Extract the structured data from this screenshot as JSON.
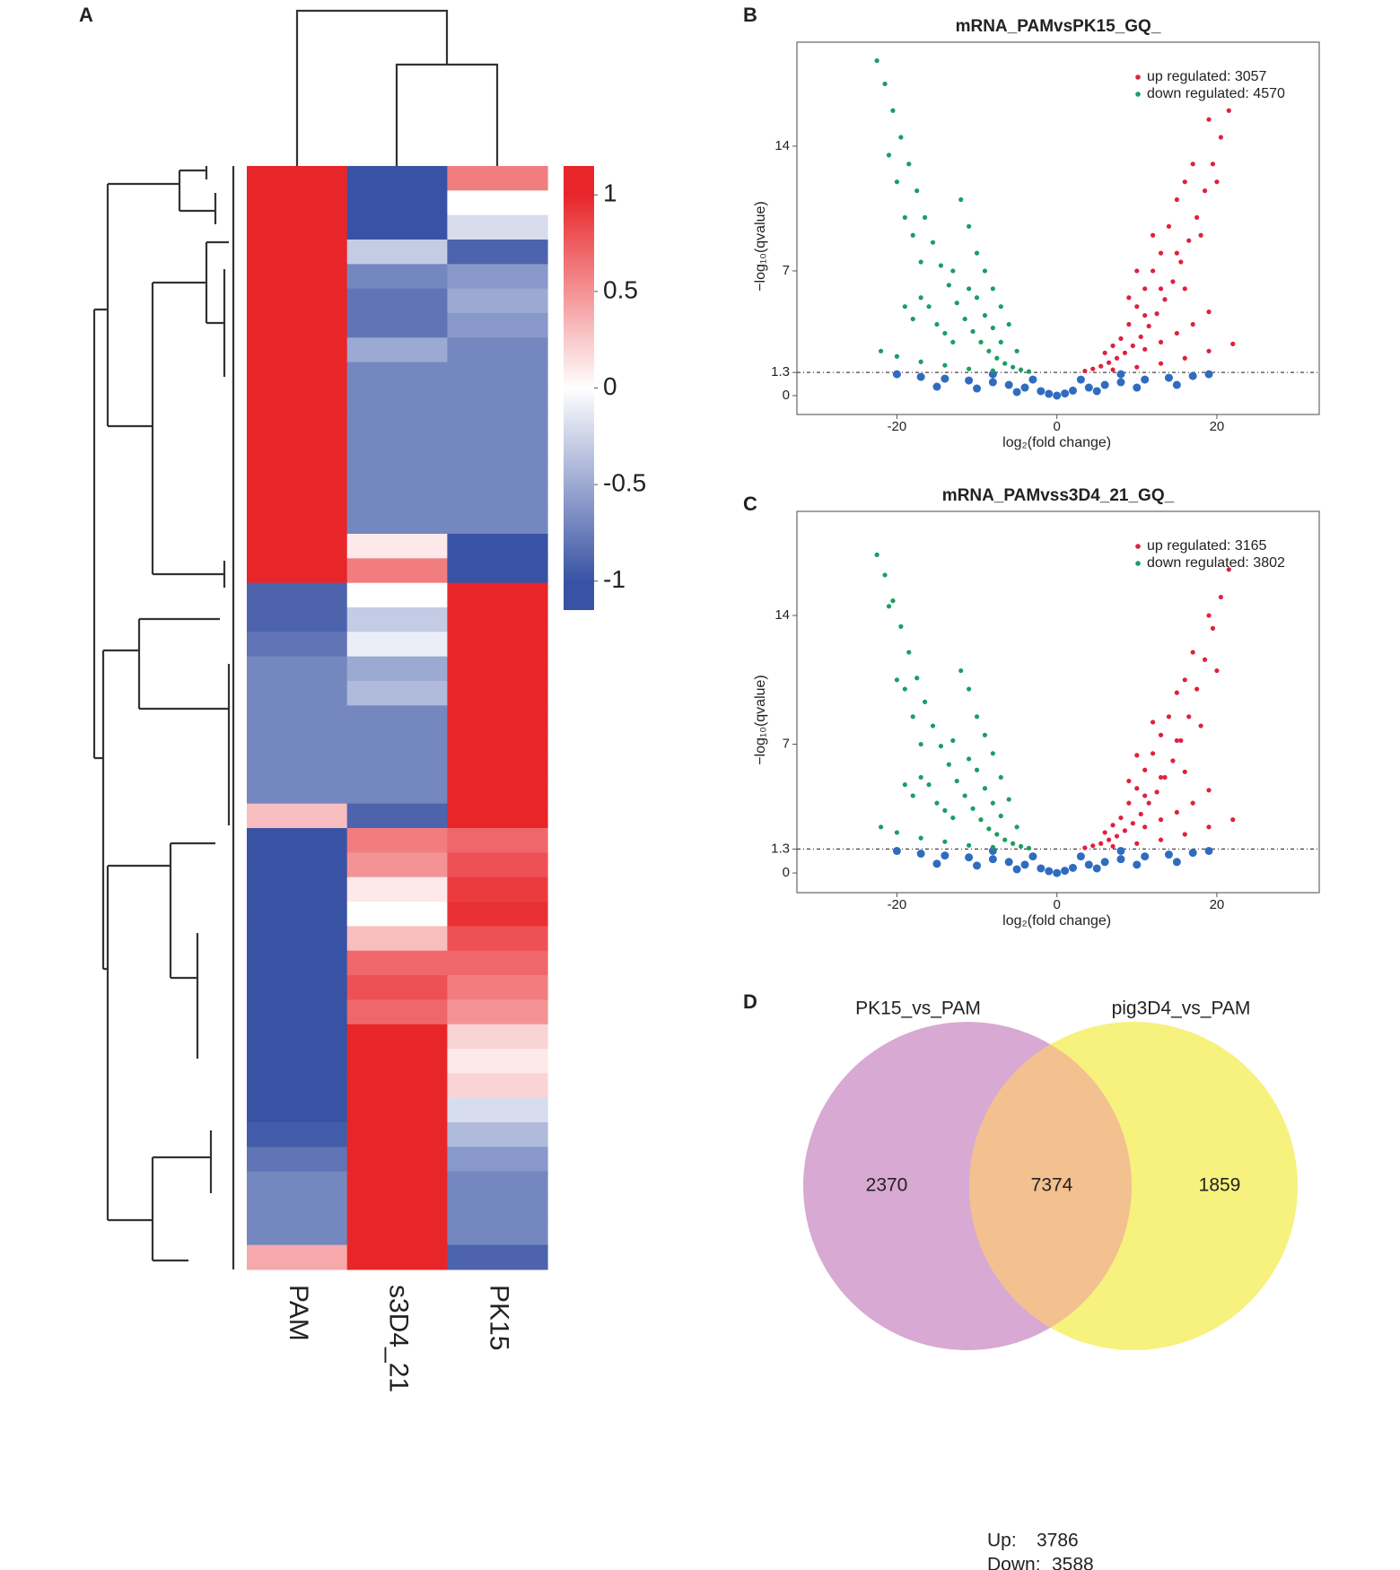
{
  "chart_data": [
    {
      "type": "heatmap",
      "panel": "A",
      "columns": [
        "PAM",
        "s3D4_21",
        "PK15"
      ],
      "rows": [
        [
          1,
          -1,
          0.6
        ],
        [
          1,
          -1,
          0.0
        ],
        [
          1,
          -1,
          -0.2
        ],
        [
          1,
          -0.3,
          -0.9
        ],
        [
          1,
          -0.7,
          -0.6
        ],
        [
          1,
          -0.8,
          -0.5
        ],
        [
          1,
          -0.8,
          -0.6
        ],
        [
          1,
          -0.5,
          -0.7
        ],
        [
          1,
          -0.7,
          -0.7
        ],
        [
          1,
          -0.7,
          -0.7
        ],
        [
          1,
          -0.7,
          -0.7
        ],
        [
          1,
          -0.7,
          -0.7
        ],
        [
          1,
          -0.7,
          -0.7
        ],
        [
          1,
          -0.7,
          -0.7
        ],
        [
          1,
          -0.7,
          -0.7
        ],
        [
          1,
          0.1,
          -1
        ],
        [
          1,
          0.6,
          -1
        ],
        [
          -0.9,
          0,
          1
        ],
        [
          -0.9,
          -0.3,
          1
        ],
        [
          -0.8,
          -0.1,
          1
        ],
        [
          -0.7,
          -0.5,
          1
        ],
        [
          -0.7,
          -0.4,
          1
        ],
        [
          -0.7,
          -0.7,
          1
        ],
        [
          -0.7,
          -0.7,
          1
        ],
        [
          -0.7,
          -0.7,
          1
        ],
        [
          -0.7,
          -0.7,
          1
        ],
        [
          0.3,
          -0.9,
          1
        ],
        [
          -1,
          0.6,
          0.7
        ],
        [
          -1,
          0.5,
          0.8
        ],
        [
          -1,
          0.1,
          0.9
        ],
        [
          -1,
          0.0,
          0.95
        ],
        [
          -1,
          0.3,
          0.8
        ],
        [
          -1,
          0.7,
          0.7
        ],
        [
          -1,
          0.8,
          0.6
        ],
        [
          -1,
          0.7,
          0.5
        ],
        [
          -1,
          1,
          0.2
        ],
        [
          -1,
          1,
          0.1
        ],
        [
          -1,
          1,
          0.2
        ],
        [
          -1,
          1,
          -0.2
        ],
        [
          -0.95,
          1,
          -0.4
        ],
        [
          -0.8,
          1,
          -0.6
        ],
        [
          -0.7,
          1,
          -0.7
        ],
        [
          -0.7,
          1,
          -0.7
        ],
        [
          -0.7,
          1,
          -0.7
        ],
        [
          0.4,
          1,
          -0.9
        ]
      ],
      "zlim": [
        -1.15,
        1.15
      ],
      "zticks": [
        1,
        0.5,
        0,
        -0.5,
        -1
      ],
      "colors": [
        "#3953a4",
        "#ffffff",
        "#e8262a"
      ]
    },
    {
      "type": "scatter",
      "panel": "B",
      "title": "mRNA_PAMvsPK15_GQ_",
      "xlabel": "log₂(fold change)",
      "ylabel": "−log₁₀(qvalue)",
      "xlim": [
        -32.5,
        32.8
      ],
      "ylim": [
        -1.06,
        19.84
      ],
      "xticks": [
        -20,
        0,
        20
      ],
      "yticks": [
        0,
        1.3,
        7,
        14
      ],
      "threshold": 1.3,
      "series": [
        {
          "name": "up regulated: 3057",
          "color": "#e0203e",
          "x": [
            21.5,
            20.5,
            19.5,
            18.5,
            17.5,
            16.5,
            15.5,
            14.5,
            13.5,
            12.5,
            11.5,
            10.5,
            9.5,
            8.5,
            7.5,
            6.5,
            5.5,
            4.5,
            3.5,
            19,
            20,
            17,
            16,
            15,
            14,
            13,
            12,
            11,
            10,
            9,
            8,
            7,
            6,
            15,
            13,
            11,
            12,
            10,
            9,
            18,
            16,
            19,
            17,
            15,
            13,
            11,
            19,
            16,
            13,
            10,
            7,
            22
          ],
          "y": [
            16,
            14.5,
            13,
            11.5,
            10,
            8.7,
            7.5,
            6.4,
            5.4,
            4.6,
            3.9,
            3.3,
            2.8,
            2.4,
            2.1,
            1.85,
            1.65,
            1.5,
            1.38,
            15.5,
            12,
            13,
            12,
            11,
            9.5,
            8,
            7,
            6,
            5,
            4,
            3.2,
            2.8,
            2.4,
            8,
            6,
            4.5,
            9,
            7,
            5.5,
            9,
            6,
            4.7,
            4,
            3.5,
            3,
            2.6,
            2.5,
            2.1,
            1.8,
            1.6,
            1.45,
            2.9
          ]
        },
        {
          "name": "down regulated: 4570",
          "color": "#1a9e62",
          "x": [
            -22.5,
            -21.5,
            -20.5,
            -19.5,
            -18.5,
            -17.5,
            -16.5,
            -15.5,
            -14.5,
            -13.5,
            -12.5,
            -11.5,
            -10.5,
            -9.5,
            -8.5,
            -7.5,
            -6.5,
            -5.5,
            -4.5,
            -3.5,
            -21,
            -20,
            -19,
            -18,
            -17,
            -19,
            -18,
            -17,
            -16,
            -15,
            -14,
            -13,
            -12,
            -11,
            -10,
            -9,
            -8,
            -7,
            -6,
            -11,
            -9,
            -7,
            -5,
            -13,
            -10,
            -8,
            -22,
            -20,
            -17,
            -14,
            -11,
            -8
          ],
          "y": [
            18.8,
            17.5,
            16,
            14.5,
            13,
            11.5,
            10,
            8.6,
            7.3,
            6.2,
            5.2,
            4.3,
            3.6,
            3,
            2.5,
            2.1,
            1.8,
            1.6,
            1.45,
            1.35,
            13.5,
            12,
            10,
            9,
            7.5,
            5,
            4.3,
            5.5,
            5,
            4,
            3.5,
            3,
            11,
            9.5,
            8,
            7,
            6,
            5,
            4,
            6,
            4.5,
            3,
            2.5,
            7,
            5.5,
            3.8,
            2.5,
            2.2,
            1.9,
            1.7,
            1.5,
            1.4
          ]
        },
        {
          "color": "#2f6cc0",
          "x": [
            -20,
            -17,
            -14,
            -11,
            -8,
            -6,
            -4,
            -2,
            -1,
            0,
            1,
            2,
            4,
            6,
            8,
            11,
            14,
            17,
            19,
            -15,
            -10,
            -5,
            5,
            10,
            15,
            -3,
            3,
            -8,
            8
          ],
          "y": [
            1.2,
            1.05,
            0.95,
            0.85,
            0.75,
            0.6,
            0.45,
            0.25,
            0.1,
            0,
            0.12,
            0.28,
            0.45,
            0.6,
            0.75,
            0.9,
            1.0,
            1.1,
            1.2,
            0.5,
            0.4,
            0.2,
            0.25,
            0.45,
            0.6,
            0.9,
            0.9,
            1.2,
            1.2
          ]
        }
      ]
    },
    {
      "type": "scatter",
      "panel": "C",
      "title": "mRNA_PAMvss3D4_21_GQ_",
      "xlabel": "log₂(fold change)",
      "ylabel": "−log₁₀(qvalue)",
      "xlim": [
        -32.5,
        32.8
      ],
      "ylim": [
        -1.07,
        19.66
      ],
      "xticks": [
        -20,
        0,
        20
      ],
      "yticks": [
        0,
        1.3,
        7,
        14
      ],
      "threshold": 1.3,
      "series": [
        {
          "name": "up regulated: 3165",
          "color": "#e0203e",
          "x": [
            21.5,
            20.5,
            19.5,
            18.5,
            17.5,
            16.5,
            15.5,
            14.5,
            13.5,
            12.5,
            11.5,
            10.5,
            9.5,
            8.5,
            7.5,
            6.5,
            5.5,
            4.5,
            3.5,
            19,
            20,
            17,
            16,
            15,
            14,
            13,
            12,
            11,
            10,
            9,
            8,
            7,
            6,
            15,
            13,
            11,
            12,
            10,
            9,
            18,
            16,
            19,
            17,
            15,
            13,
            11,
            19,
            16,
            13,
            10,
            7,
            22
          ],
          "y": [
            16.5,
            15,
            13.3,
            11.6,
            10,
            8.5,
            7.2,
            6.1,
            5.2,
            4.4,
            3.8,
            3.2,
            2.7,
            2.3,
            2,
            1.8,
            1.6,
            1.48,
            1.37,
            14,
            11,
            12,
            10.5,
            9.8,
            8.5,
            7.5,
            6.5,
            5.6,
            4.6,
            3.8,
            3,
            2.6,
            2.2,
            7.2,
            5.2,
            4.2,
            8.2,
            6.4,
            5,
            8,
            5.5,
            4.5,
            3.8,
            3.3,
            2.9,
            2.5,
            2.5,
            2.1,
            1.8,
            1.6,
            1.45,
            2.9
          ]
        },
        {
          "name": "down regulated: 3802",
          "color": "#1a9e62",
          "x": [
            -22.5,
            -21.5,
            -20.5,
            -19.5,
            -18.5,
            -17.5,
            -16.5,
            -15.5,
            -14.5,
            -13.5,
            -12.5,
            -11.5,
            -10.5,
            -9.5,
            -8.5,
            -7.5,
            -6.5,
            -5.5,
            -4.5,
            -3.5,
            -21,
            -20,
            -19,
            -18,
            -17,
            -19,
            -18,
            -17,
            -16,
            -15,
            -14,
            -13,
            -12,
            -11,
            -10,
            -9,
            -8,
            -7,
            -6,
            -11,
            -9,
            -7,
            -5,
            -13,
            -10,
            -8,
            -22,
            -20,
            -17,
            -14,
            -11,
            -8
          ],
          "y": [
            17.3,
            16.2,
            14.8,
            13.4,
            12,
            10.6,
            9.3,
            8,
            6.9,
            5.9,
            5,
            4.2,
            3.5,
            2.9,
            2.4,
            2.1,
            1.8,
            1.6,
            1.45,
            1.35,
            14.5,
            10.5,
            10,
            8.5,
            7,
            4.8,
            4.2,
            5.2,
            4.8,
            3.8,
            3.4,
            3,
            11,
            10,
            8.5,
            7.5,
            6.5,
            5.2,
            4,
            6.2,
            4.6,
            3.1,
            2.5,
            7.2,
            5.6,
            3.8,
            2.5,
            2.2,
            1.9,
            1.7,
            1.5,
            1.4
          ]
        },
        {
          "color": "#2f6cc0",
          "x": [
            -20,
            -17,
            -14,
            -11,
            -8,
            -6,
            -4,
            -2,
            -1,
            0,
            1,
            2,
            4,
            6,
            8,
            11,
            14,
            17,
            19,
            -15,
            -10,
            -5,
            5,
            10,
            15,
            -3,
            3,
            -8,
            8
          ],
          "y": [
            1.2,
            1.05,
            0.95,
            0.85,
            0.75,
            0.6,
            0.45,
            0.25,
            0.1,
            0,
            0.12,
            0.28,
            0.45,
            0.6,
            0.75,
            0.9,
            1.0,
            1.1,
            1.2,
            0.5,
            0.4,
            0.2,
            0.25,
            0.45,
            0.6,
            0.9,
            0.9,
            1.2,
            1.2
          ]
        }
      ]
    },
    {
      "type": "venn",
      "panel": "D",
      "sets": [
        "PK15_vs_PAM",
        "pig3D4_vs_PAM"
      ],
      "colors": [
        "#d8a9d3",
        "#f7f17e",
        "#f3c090"
      ],
      "values": [
        2370,
        7374,
        1859
      ],
      "value_colors": [
        "#5a1f80",
        "#333333",
        "#333333"
      ],
      "notes": [
        {
          "label": "Up:",
          "value": 3786
        },
        {
          "label": "Down:",
          "value": 3588
        }
      ]
    }
  ]
}
